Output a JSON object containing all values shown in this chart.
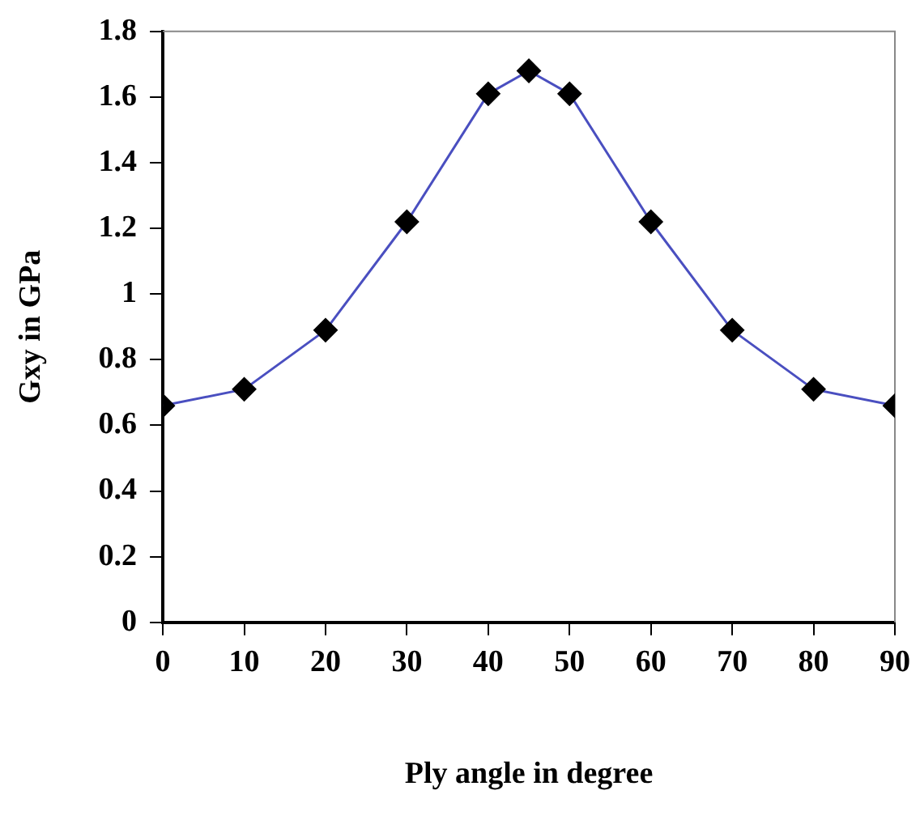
{
  "chart_data": {
    "type": "line",
    "xlabel": "Ply angle in degree",
    "ylabel": "Gxy in GPa",
    "x": [
      0,
      10,
      20,
      30,
      40,
      45,
      50,
      60,
      70,
      80,
      90
    ],
    "series": [
      {
        "color": "#4a4fc0",
        "values": [
          0.66,
          0.71,
          0.89,
          1.22,
          1.61,
          1.68,
          1.61,
          1.22,
          0.89,
          0.71,
          0.66
        ]
      }
    ],
    "xlim": [
      0,
      90
    ],
    "xticks": [
      0,
      10,
      20,
      30,
      40,
      50,
      60,
      70,
      80,
      90
    ],
    "ylim": [
      0,
      1.8
    ],
    "yticks": [
      0,
      0.2,
      0.4,
      0.6,
      0.8,
      1,
      1.2,
      1.4,
      1.6,
      1.8
    ],
    "grid": false,
    "legend": false,
    "marker": "diamond",
    "line_style": "solid"
  }
}
